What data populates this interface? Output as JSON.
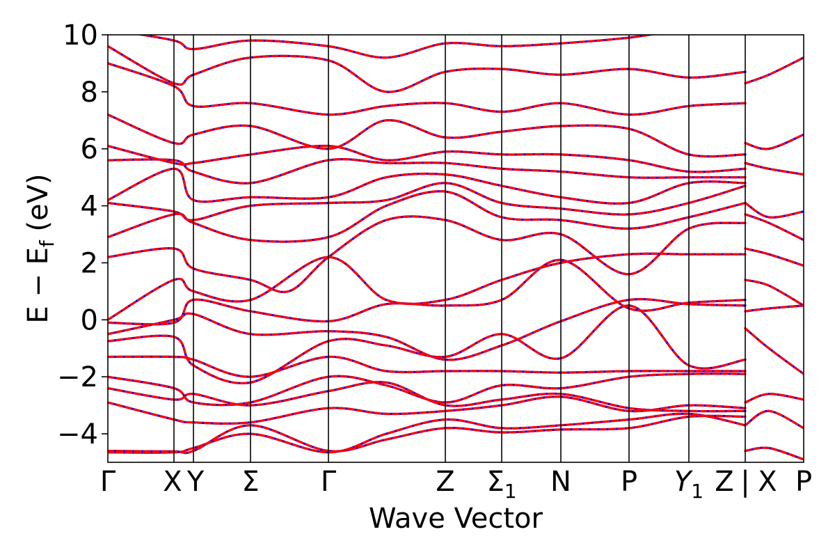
{
  "chart_data": {
    "type": "line",
    "title": "",
    "xlabel": "Wave Vector",
    "ylabel": "E − E",
    "ylabel_sub": "f",
    "ylabel_unit": " (eV)",
    "ylim": [
      -5,
      10
    ],
    "xlim": [
      0,
      1
    ],
    "yticks": [
      -4,
      -2,
      0,
      2,
      4,
      6,
      8,
      10
    ],
    "ytick_labels": [
      "−4",
      "−2",
      "0",
      "2",
      "4",
      "6",
      "8",
      "10"
    ],
    "kpoints": [
      {
        "pos": 0.0,
        "label": "Γ",
        "sub": ""
      },
      {
        "pos": 0.095,
        "label": "X",
        "sub": ""
      },
      {
        "pos": 0.123,
        "label": "Y",
        "sub": ""
      },
      {
        "pos": 0.205,
        "label": "Σ",
        "sub": ""
      },
      {
        "pos": 0.317,
        "label": "Γ",
        "sub": ""
      },
      {
        "pos": 0.485,
        "label": "Z",
        "sub": ""
      },
      {
        "pos": 0.566,
        "label": "Σ",
        "sub": "1"
      },
      {
        "pos": 0.651,
        "label": "N",
        "sub": ""
      },
      {
        "pos": 0.749,
        "label": "P",
        "sub": ""
      },
      {
        "pos": 0.835,
        "label": "Y",
        "sub": "1",
        "italic": true
      },
      {
        "pos": 0.916,
        "label": "Z",
        "sub": ""
      },
      {
        "pos": 0.916,
        "label": "|",
        "sub": "",
        "offset": 0
      },
      {
        "pos": 0.916,
        "label": "X",
        "sub": "",
        "offset": 32
      },
      {
        "pos": 1.0,
        "label": "P",
        "sub": ""
      }
    ],
    "series": [
      {
        "color": "#0000ff",
        "dash": "none",
        "width": 3.2
      },
      {
        "color": "#ff0000",
        "dash": "8,5",
        "width": 3.2
      }
    ],
    "bands": [
      [
        [
          0,
          -4.6
        ],
        [
          0.095,
          -4.62
        ],
        [
          0.123,
          -4.6
        ],
        [
          0.205,
          -3.7
        ],
        [
          0.317,
          -4.6
        ],
        [
          0.4,
          -4.2
        ],
        [
          0.485,
          -3.8
        ],
        [
          0.566,
          -3.95
        ],
        [
          0.651,
          -3.85
        ],
        [
          0.749,
          -3.8
        ],
        [
          0.835,
          -3.4
        ],
        [
          0.916,
          -3.4
        ]
      ],
      [
        [
          0,
          -4.65
        ],
        [
          0.095,
          -4.65
        ],
        [
          0.123,
          -4.5
        ],
        [
          0.205,
          -4.0
        ],
        [
          0.317,
          -4.65
        ],
        [
          0.4,
          -4.0
        ],
        [
          0.485,
          -3.5
        ],
        [
          0.566,
          -3.8
        ],
        [
          0.651,
          -3.7
        ],
        [
          0.749,
          -3.5
        ],
        [
          0.835,
          -3.3
        ],
        [
          0.916,
          -3.7
        ]
      ],
      [
        [
          0,
          -2.9
        ],
        [
          0.095,
          -3.5
        ],
        [
          0.123,
          -3.6
        ],
        [
          0.205,
          -3.6
        ],
        [
          0.317,
          -3.1
        ],
        [
          0.4,
          -3.3
        ],
        [
          0.485,
          -3.2
        ],
        [
          0.566,
          -3.0
        ],
        [
          0.651,
          -2.7
        ],
        [
          0.749,
          -3.2
        ],
        [
          0.835,
          -3.0
        ],
        [
          0.916,
          -3.1
        ]
      ],
      [
        [
          0,
          -2.4
        ],
        [
          0.095,
          -2.8
        ],
        [
          0.123,
          -2.6
        ],
        [
          0.205,
          -3.0
        ],
        [
          0.317,
          -2.5
        ],
        [
          0.4,
          -2.2
        ],
        [
          0.485,
          -3.0
        ],
        [
          0.566,
          -2.8
        ],
        [
          0.651,
          -2.6
        ],
        [
          0.749,
          -3.1
        ],
        [
          0.835,
          -3.2
        ],
        [
          0.916,
          -3.2
        ]
      ],
      [
        [
          0,
          -2.0
        ],
        [
          0.095,
          -2.4
        ],
        [
          0.123,
          -2.9
        ],
        [
          0.205,
          -2.9
        ],
        [
          0.317,
          -2.0
        ],
        [
          0.4,
          -2.3
        ],
        [
          0.485,
          -2.9
        ],
        [
          0.566,
          -2.3
        ],
        [
          0.651,
          -2.4
        ],
        [
          0.749,
          -2.0
        ],
        [
          0.835,
          -1.9
        ],
        [
          0.916,
          -1.9
        ]
      ],
      [
        [
          0,
          -1.3
        ],
        [
          0.095,
          -1.3
        ],
        [
          0.123,
          -1.4
        ],
        [
          0.205,
          -2.0
        ],
        [
          0.317,
          -1.3
        ],
        [
          0.4,
          -1.8
        ],
        [
          0.485,
          -1.8
        ],
        [
          0.566,
          -1.8
        ],
        [
          0.651,
          -1.85
        ],
        [
          0.749,
          -1.8
        ],
        [
          0.835,
          -1.8
        ],
        [
          0.916,
          -1.8
        ]
      ],
      [
        [
          0,
          -0.75
        ],
        [
          0.095,
          -0.6
        ],
        [
          0.123,
          -1.6
        ],
        [
          0.205,
          -2.2
        ],
        [
          0.317,
          -0.75
        ],
        [
          0.4,
          -0.9
        ],
        [
          0.485,
          -1.3
        ],
        [
          0.566,
          -0.5
        ],
        [
          0.651,
          -1.35
        ],
        [
          0.749,
          0.5
        ],
        [
          0.835,
          -1.6
        ],
        [
          0.916,
          -1.4
        ]
      ],
      [
        [
          0,
          -0.5
        ],
        [
          0.095,
          0.0
        ],
        [
          0.123,
          0.2
        ],
        [
          0.205,
          -0.5
        ],
        [
          0.317,
          -0.4
        ],
        [
          0.4,
          -0.6
        ],
        [
          0.485,
          -1.4
        ],
        [
          0.566,
          -0.9
        ],
        [
          0.651,
          -0.05
        ],
        [
          0.749,
          0.7
        ],
        [
          0.835,
          0.55
        ],
        [
          0.916,
          0.5
        ]
      ],
      [
        [
          0,
          -0.1
        ],
        [
          0.095,
          -0.1
        ],
        [
          0.123,
          0.7
        ],
        [
          0.205,
          0.3
        ],
        [
          0.317,
          -0.05
        ],
        [
          0.4,
          0.55
        ],
        [
          0.485,
          0.5
        ],
        [
          0.566,
          0.7
        ],
        [
          0.651,
          2.1
        ],
        [
          0.749,
          0.4
        ],
        [
          0.835,
          0.6
        ],
        [
          0.916,
          0.7
        ]
      ],
      [
        [
          0,
          0.0
        ],
        [
          0.095,
          1.4
        ],
        [
          0.123,
          1.0
        ],
        [
          0.205,
          0.7
        ],
        [
          0.317,
          2.2
        ],
        [
          0.4,
          0.7
        ],
        [
          0.485,
          0.7
        ],
        [
          0.566,
          1.4
        ],
        [
          0.651,
          2.0
        ],
        [
          0.749,
          2.3
        ],
        [
          0.835,
          2.3
        ],
        [
          0.916,
          2.3
        ]
      ],
      [
        [
          0,
          2.2
        ],
        [
          0.095,
          2.5
        ],
        [
          0.123,
          1.8
        ],
        [
          0.205,
          1.4
        ],
        [
          0.26,
          1.0
        ],
        [
          0.317,
          2.2
        ],
        [
          0.4,
          3.5
        ],
        [
          0.485,
          3.5
        ],
        [
          0.566,
          2.8
        ],
        [
          0.651,
          3.0
        ],
        [
          0.749,
          1.6
        ],
        [
          0.835,
          3.2
        ],
        [
          0.916,
          3.4
        ]
      ],
      [
        [
          0,
          2.9
        ],
        [
          0.095,
          3.7
        ],
        [
          0.123,
          3.4
        ],
        [
          0.205,
          2.8
        ],
        [
          0.317,
          2.9
        ],
        [
          0.4,
          4.0
        ],
        [
          0.485,
          4.5
        ],
        [
          0.566,
          3.6
        ],
        [
          0.651,
          3.5
        ],
        [
          0.749,
          3.2
        ],
        [
          0.835,
          3.6
        ],
        [
          0.916,
          4.1
        ]
      ],
      [
        [
          0,
          4.1
        ],
        [
          0.095,
          3.8
        ],
        [
          0.123,
          3.5
        ],
        [
          0.205,
          4.0
        ],
        [
          0.317,
          4.1
        ],
        [
          0.4,
          4.2
        ],
        [
          0.485,
          4.8
        ],
        [
          0.566,
          4.1
        ],
        [
          0.651,
          3.9
        ],
        [
          0.749,
          3.7
        ],
        [
          0.835,
          4.1
        ],
        [
          0.916,
          4.7
        ]
      ],
      [
        [
          0,
          4.2
        ],
        [
          0.095,
          5.3
        ],
        [
          0.123,
          4.2
        ],
        [
          0.205,
          4.3
        ],
        [
          0.317,
          4.3
        ],
        [
          0.4,
          5.0
        ],
        [
          0.485,
          5.1
        ],
        [
          0.566,
          4.7
        ],
        [
          0.651,
          4.3
        ],
        [
          0.749,
          4.1
        ],
        [
          0.835,
          4.8
        ],
        [
          0.916,
          4.8
        ]
      ],
      [
        [
          0,
          5.6
        ],
        [
          0.095,
          5.6
        ],
        [
          0.123,
          5.2
        ],
        [
          0.205,
          4.8
        ],
        [
          0.317,
          5.6
        ],
        [
          0.4,
          5.5
        ],
        [
          0.485,
          5.5
        ],
        [
          0.566,
          5.3
        ],
        [
          0.651,
          5.2
        ],
        [
          0.749,
          5.0
        ],
        [
          0.835,
          5.0
        ],
        [
          0.916,
          5.0
        ]
      ],
      [
        [
          0,
          6.1
        ],
        [
          0.095,
          5.5
        ],
        [
          0.123,
          5.5
        ],
        [
          0.205,
          5.8
        ],
        [
          0.317,
          6.1
        ],
        [
          0.4,
          5.6
        ],
        [
          0.485,
          5.9
        ],
        [
          0.566,
          5.8
        ],
        [
          0.651,
          5.8
        ],
        [
          0.749,
          5.6
        ],
        [
          0.835,
          5.2
        ],
        [
          0.916,
          5.3
        ]
      ],
      [
        [
          0,
          7.2
        ],
        [
          0.095,
          6.2
        ],
        [
          0.123,
          6.5
        ],
        [
          0.205,
          6.8
        ],
        [
          0.317,
          6.0
        ],
        [
          0.4,
          7.0
        ],
        [
          0.485,
          6.4
        ],
        [
          0.566,
          6.6
        ],
        [
          0.651,
          6.8
        ],
        [
          0.749,
          6.7
        ],
        [
          0.835,
          5.8
        ],
        [
          0.916,
          5.8
        ]
      ],
      [
        [
          0,
          9.0
        ],
        [
          0.095,
          8.2
        ],
        [
          0.123,
          7.5
        ],
        [
          0.205,
          7.6
        ],
        [
          0.317,
          7.2
        ],
        [
          0.4,
          7.5
        ],
        [
          0.485,
          7.6
        ],
        [
          0.566,
          7.3
        ],
        [
          0.651,
          7.6
        ],
        [
          0.749,
          7.2
        ],
        [
          0.835,
          7.5
        ],
        [
          0.916,
          7.6
        ]
      ],
      [
        [
          0,
          9.6
        ],
        [
          0.095,
          8.3
        ],
        [
          0.123,
          8.6
        ],
        [
          0.205,
          9.2
        ],
        [
          0.317,
          9.1
        ],
        [
          0.4,
          8.0
        ],
        [
          0.485,
          8.7
        ],
        [
          0.566,
          8.8
        ],
        [
          0.651,
          8.6
        ],
        [
          0.749,
          8.8
        ],
        [
          0.835,
          8.5
        ],
        [
          0.916,
          8.7
        ]
      ],
      [
        [
          0,
          10.2
        ],
        [
          0.095,
          9.8
        ],
        [
          0.123,
          9.5
        ],
        [
          0.205,
          9.8
        ],
        [
          0.317,
          9.6
        ],
        [
          0.4,
          9.2
        ],
        [
          0.485,
          9.7
        ],
        [
          0.566,
          9.6
        ],
        [
          0.651,
          9.7
        ],
        [
          0.749,
          9.9
        ],
        [
          0.835,
          10.2
        ],
        [
          0.916,
          10.2
        ]
      ],
      [
        [
          0.916,
          -4.6
        ],
        [
          0.95,
          -4.5
        ],
        [
          1.0,
          -4.9
        ]
      ],
      [
        [
          0.916,
          -3.7
        ],
        [
          0.95,
          -3.2
        ],
        [
          1.0,
          -3.8
        ]
      ],
      [
        [
          0.916,
          -2.9
        ],
        [
          0.95,
          -2.6
        ],
        [
          1.0,
          -2.8
        ]
      ],
      [
        [
          0.916,
          -0.3
        ],
        [
          0.95,
          -1.0
        ],
        [
          1.0,
          -1.9
        ]
      ],
      [
        [
          0.916,
          0.3
        ],
        [
          0.95,
          0.4
        ],
        [
          1.0,
          0.5
        ]
      ],
      [
        [
          0.916,
          1.4
        ],
        [
          0.95,
          1.2
        ],
        [
          1.0,
          0.5
        ]
      ],
      [
        [
          0.916,
          2.5
        ],
        [
          0.95,
          2.3
        ],
        [
          1.0,
          1.9
        ]
      ],
      [
        [
          0.916,
          3.7
        ],
        [
          0.95,
          3.4
        ],
        [
          1.0,
          2.8
        ]
      ],
      [
        [
          0.916,
          4.1
        ],
        [
          0.95,
          3.6
        ],
        [
          1.0,
          3.8
        ]
      ],
      [
        [
          0.916,
          5.5
        ],
        [
          0.95,
          5.3
        ],
        [
          1.0,
          5.1
        ]
      ],
      [
        [
          0.916,
          6.2
        ],
        [
          0.95,
          6.0
        ],
        [
          1.0,
          6.5
        ]
      ],
      [
        [
          0.916,
          8.3
        ],
        [
          0.95,
          8.6
        ],
        [
          1.0,
          9.2
        ]
      ]
    ]
  }
}
